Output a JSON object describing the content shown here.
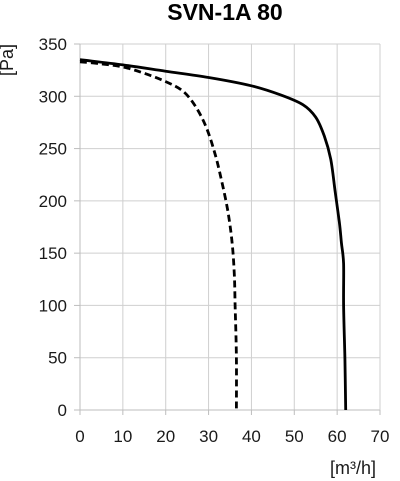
{
  "chart_data": {
    "type": "line",
    "title": "SVN-1A 80",
    "xlabel": "[m³/h]",
    "ylabel": "[Pa]",
    "xlim": [
      0,
      70
    ],
    "ylim": [
      0,
      350
    ],
    "x_ticks": [
      "0",
      "10",
      "20",
      "30",
      "40",
      "50",
      "60",
      "70"
    ],
    "y_ticks": [
      "0",
      "50",
      "100",
      "150",
      "200",
      "250",
      "300",
      "350"
    ],
    "grid": true,
    "legend": "none",
    "series": [
      {
        "style": "solid",
        "color": "#000000",
        "points": [
          [
            0,
            335
          ],
          [
            10,
            330
          ],
          [
            20,
            324
          ],
          [
            30,
            318
          ],
          [
            40,
            310
          ],
          [
            47,
            301
          ],
          [
            52,
            292
          ],
          [
            55,
            280
          ],
          [
            57,
            262
          ],
          [
            58.5,
            240
          ],
          [
            59.5,
            210
          ],
          [
            60.5,
            180
          ],
          [
            61,
            160
          ],
          [
            61.5,
            140
          ],
          [
            61.5,
            100
          ],
          [
            61.8,
            50
          ],
          [
            62,
            0
          ]
        ]
      },
      {
        "style": "dashed",
        "color": "#000000",
        "points": [
          [
            0,
            333
          ],
          [
            5,
            331
          ],
          [
            10,
            328
          ],
          [
            15,
            322
          ],
          [
            20,
            314
          ],
          [
            24,
            305
          ],
          [
            27,
            290
          ],
          [
            29.5,
            270
          ],
          [
            31.5,
            245
          ],
          [
            33,
            220
          ],
          [
            34.5,
            190
          ],
          [
            35.5,
            160
          ],
          [
            36,
            130
          ],
          [
            36.2,
            100
          ],
          [
            36.5,
            50
          ],
          [
            36.5,
            0
          ]
        ]
      }
    ]
  }
}
